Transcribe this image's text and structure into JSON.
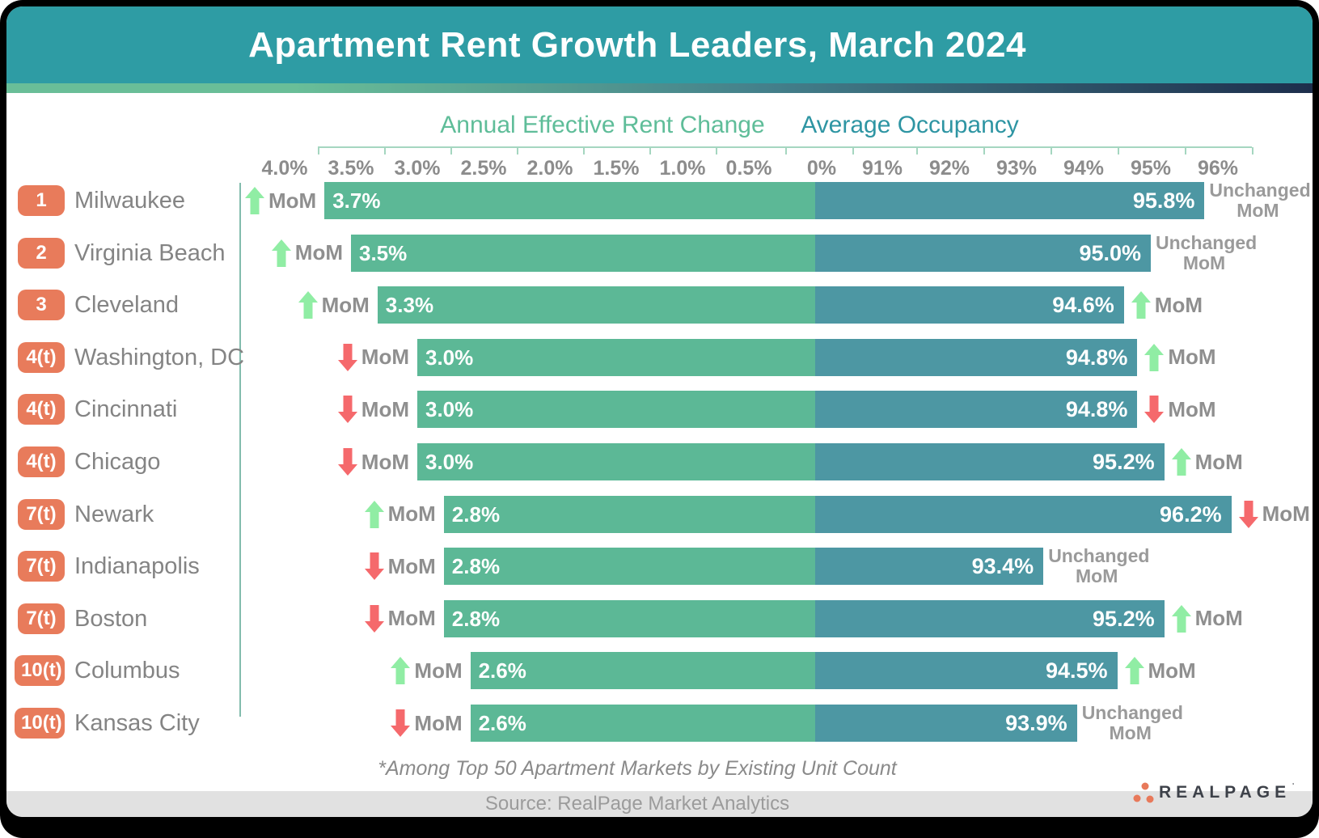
{
  "header": {
    "title": "Apartment Rent Growth Leaders, March 2024"
  },
  "mom": {
    "label": "MoM",
    "unchanged_lines": [
      "Unchanged",
      "MoM"
    ]
  },
  "chart_data": {
    "type": "bar",
    "orientation": "horizontal-diverging",
    "title": "Apartment Rent Growth Leaders, March 2024",
    "footnote": "*Among Top 50 Apartment Markets by Existing Unit Count",
    "rent_axis": {
      "label": "Annual Effective Rent Change",
      "ticks": [
        "4.0%",
        "3.5%",
        "3.0%",
        "2.5%",
        "2.0%",
        "1.5%",
        "1.0%",
        "0.5%",
        "0%"
      ],
      "range": [
        0,
        4.0
      ],
      "direction": "right-to-left",
      "unit": "%"
    },
    "occupancy_axis": {
      "label": "Average Occupancy",
      "ticks": [
        "91%",
        "92%",
        "93%",
        "94%",
        "95%",
        "96%"
      ],
      "range": [
        90,
        96.5
      ],
      "unit": "%"
    },
    "rows": [
      {
        "rank": "1",
        "market": "Milwaukee",
        "rent_change": 3.7,
        "rent_display": "3.7%",
        "rent_mom": "up",
        "occupancy": 95.8,
        "occupancy_display": "95.8%",
        "occupancy_mom": "unchanged"
      },
      {
        "rank": "2",
        "market": "Virginia Beach",
        "rent_change": 3.5,
        "rent_display": "3.5%",
        "rent_mom": "up",
        "occupancy": 95.0,
        "occupancy_display": "95.0%",
        "occupancy_mom": "unchanged"
      },
      {
        "rank": "3",
        "market": "Cleveland",
        "rent_change": 3.3,
        "rent_display": "3.3%",
        "rent_mom": "up",
        "occupancy": 94.6,
        "occupancy_display": "94.6%",
        "occupancy_mom": "up"
      },
      {
        "rank": "4(t)",
        "market": "Washington, DC",
        "rent_change": 3.0,
        "rent_display": "3.0%",
        "rent_mom": "down",
        "occupancy": 94.8,
        "occupancy_display": "94.8%",
        "occupancy_mom": "up"
      },
      {
        "rank": "4(t)",
        "market": "Cincinnati",
        "rent_change": 3.0,
        "rent_display": "3.0%",
        "rent_mom": "down",
        "occupancy": 94.8,
        "occupancy_display": "94.8%",
        "occupancy_mom": "down"
      },
      {
        "rank": "4(t)",
        "market": "Chicago",
        "rent_change": 3.0,
        "rent_display": "3.0%",
        "rent_mom": "down",
        "occupancy": 95.2,
        "occupancy_display": "95.2%",
        "occupancy_mom": "up"
      },
      {
        "rank": "7(t)",
        "market": "Newark",
        "rent_change": 2.8,
        "rent_display": "2.8%",
        "rent_mom": "up",
        "occupancy": 96.2,
        "occupancy_display": "96.2%",
        "occupancy_mom": "down"
      },
      {
        "rank": "7(t)",
        "market": "Indianapolis",
        "rent_change": 2.8,
        "rent_display": "2.8%",
        "rent_mom": "down",
        "occupancy": 93.4,
        "occupancy_display": "93.4%",
        "occupancy_mom": "unchanged"
      },
      {
        "rank": "7(t)",
        "market": "Boston",
        "rent_change": 2.8,
        "rent_display": "2.8%",
        "rent_mom": "down",
        "occupancy": 95.2,
        "occupancy_display": "95.2%",
        "occupancy_mom": "up"
      },
      {
        "rank": "10(t)",
        "market": "Columbus",
        "rent_change": 2.6,
        "rent_display": "2.6%",
        "rent_mom": "up",
        "occupancy": 94.5,
        "occupancy_display": "94.5%",
        "occupancy_mom": "up"
      },
      {
        "rank": "10(t)",
        "market": "Kansas City",
        "rent_change": 2.6,
        "rent_display": "2.6%",
        "rent_mom": "down",
        "occupancy": 93.9,
        "occupancy_display": "93.9%",
        "occupancy_mom": "unchanged"
      }
    ]
  },
  "footer": {
    "source": "Source: RealPage Market Analytics",
    "logo_text": "REALPAGE"
  },
  "colors": {
    "header_teal": "#2E9CA4",
    "rent_bar_green": "#5CB896",
    "occupancy_bar_teal": "#4D97A3",
    "rank_badge_orange": "#E87B5B",
    "up_arrow_green": "#90EDA4",
    "down_arrow_red": "#F5696C",
    "rent_heading_green": "#5FBD99",
    "occupancy_heading_teal": "#2E95A3",
    "axis_line_green": "#A5D6C0",
    "frame_black": "#000000",
    "source_bar_gray": "#E1E1E1"
  }
}
